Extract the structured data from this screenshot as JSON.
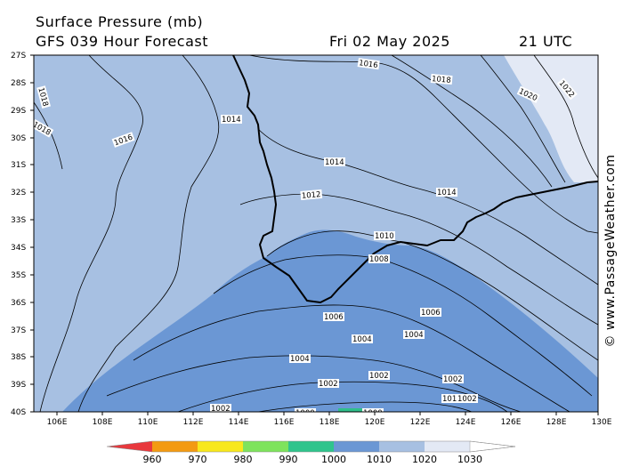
{
  "header": {
    "title": "Surface Pressure (mb)",
    "forecast": "GFS 039 Hour Forecast",
    "date": "Fri 02 May 2025",
    "time": "21 UTC"
  },
  "credit": "© www.PassageWeather.com",
  "map": {
    "lat_labels": [
      "27S",
      "28S",
      "29S",
      "30S",
      "31S",
      "32S",
      "33S",
      "34S",
      "35S",
      "36S",
      "37S",
      "38S",
      "39S",
      "40S"
    ],
    "lon_labels": [
      "106E",
      "108E",
      "110E",
      "112E",
      "114E",
      "116E",
      "118E",
      "120E",
      "122E",
      "124E",
      "126E",
      "128E",
      "130E"
    ],
    "isobar_labels": [
      {
        "id": "i1016a",
        "text": "1016"
      },
      {
        "id": "i1018a",
        "text": "1018"
      },
      {
        "id": "i1020a",
        "text": "1020"
      },
      {
        "id": "i1022a",
        "text": "1022"
      },
      {
        "id": "i1018b",
        "text": "1018"
      },
      {
        "id": "i1014a",
        "text": "1014"
      },
      {
        "id": "i1016b",
        "text": "1016"
      },
      {
        "id": "i1018c",
        "text": "1018"
      },
      {
        "id": "i1014b",
        "text": "1014"
      },
      {
        "id": "i1014c",
        "text": "1014"
      },
      {
        "id": "i1012a",
        "text": "1012"
      },
      {
        "id": "i1010a",
        "text": "1010"
      },
      {
        "id": "i1008a",
        "text": "1008"
      },
      {
        "id": "i1006a",
        "text": "1006"
      },
      {
        "id": "i1006b",
        "text": "1006"
      },
      {
        "id": "i1004a",
        "text": "1004"
      },
      {
        "id": "i1004b",
        "text": "1004"
      },
      {
        "id": "i1004c",
        "text": "1004"
      },
      {
        "id": "i1002a",
        "text": "1002"
      },
      {
        "id": "i1002b",
        "text": "1002"
      },
      {
        "id": "i1002c",
        "text": "1002"
      },
      {
        "id": "i1002d",
        "text": "1002"
      },
      {
        "id": "i1010b",
        "text": "1010"
      },
      {
        "id": "i1002e",
        "text": "1002"
      },
      {
        "id": "i1000a",
        "text": "1000"
      },
      {
        "id": "i1000b",
        "text": "1000"
      }
    ],
    "fill_colors": {
      "p1000_1010": "#6b97d4",
      "p1010_1020": "#a7c0e2",
      "p1020_1030": "#e3e9f5",
      "p990_1000": "#2fbf8a"
    }
  },
  "colorbar": {
    "labels": [
      "960",
      "970",
      "980",
      "990",
      "1000",
      "1010",
      "1020",
      "1030"
    ],
    "colors": [
      "#e8383d",
      "#f39a12",
      "#f8e81c",
      "#7ee35c",
      "#2fc48c",
      "#6b97d4",
      "#a7c0e2",
      "#e3e9f5",
      "#ffffff"
    ]
  }
}
